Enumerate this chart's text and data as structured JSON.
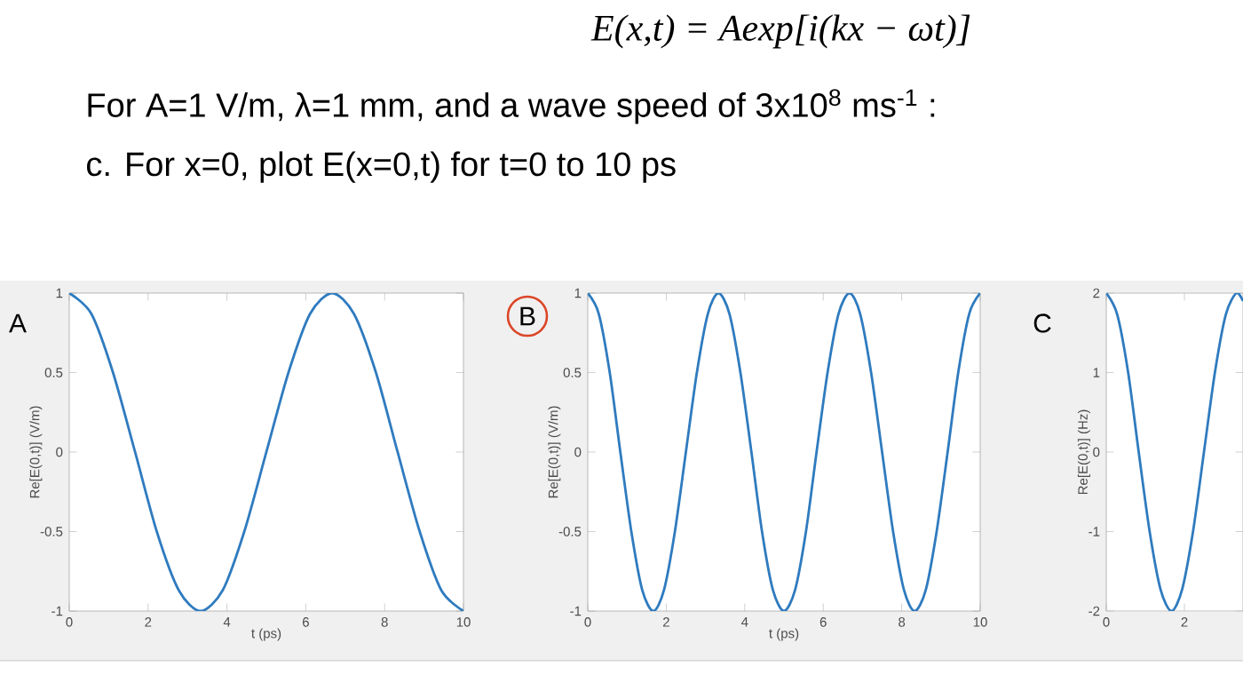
{
  "chart_data": [
    {
      "type": "line",
      "title": "A",
      "annotations": [
        "E(x,t) = Aexp[i(kx − ωt)]",
        "For A=1 V/m, λ=1 mm, and a wave speed of 3x10$^{8}$ ms$^{-1}$ :",
        "c. For x=0, plot E(x=0,t) for t=0 to 10 ps"
      ],
      "xlabel": "t (ps)",
      "ylabel": "Re[E(0,t)]  (V/m)",
      "xlim": [
        0,
        10
      ],
      "ylim": [
        -1,
        1
      ],
      "xticks": [
        0,
        2,
        4,
        6,
        8,
        10
      ],
      "yticks": [
        -1,
        -0.5,
        0,
        0.5,
        1
      ],
      "x": [
        0,
        0.56,
        1.11,
        1.67,
        2.22,
        2.78,
        3.33,
        3.89,
        4.44,
        5,
        5.56,
        6.11,
        6.67,
        7.22,
        7.78,
        8.33,
        8.89,
        9.44,
        10
      ],
      "series": [
        {
          "color": "#2f7bbf",
          "values": [
            1,
            0.87,
            0.5,
            0,
            -0.5,
            -0.87,
            -1,
            -0.87,
            -0.5,
            0,
            0.5,
            0.87,
            1,
            0.87,
            0.5,
            0,
            -0.5,
            -0.87,
            -1
          ]
        }
      ]
    },
    {
      "type": "line",
      "title": "B",
      "xlabel": "t (ps)",
      "ylabel": "Re[E(0,t)] (V/m)",
      "xlim": [
        0,
        10
      ],
      "ylim": [
        -1,
        1
      ],
      "xticks": [
        0,
        2,
        4,
        6,
        8,
        10
      ],
      "yticks": [
        -1,
        -0.5,
        0,
        0.5,
        1
      ],
      "x": [
        0,
        0.28,
        0.56,
        0.83,
        1.11,
        1.39,
        1.67,
        1.94,
        2.22,
        2.5,
        2.78,
        3.06,
        3.33,
        3.61,
        3.89,
        4.17,
        4.44,
        4.72,
        5,
        5.28,
        5.56,
        5.83,
        6.11,
        6.39,
        6.67,
        6.94,
        7.22,
        7.5,
        7.78,
        8.06,
        8.33,
        8.61,
        8.89,
        9.17,
        9.44,
        9.72,
        10
      ],
      "series": [
        {
          "color": "#2f7bbf",
          "values": [
            1,
            0.87,
            0.5,
            0,
            -0.5,
            -0.87,
            -1,
            -0.87,
            -0.5,
            0,
            0.5,
            0.87,
            1,
            0.87,
            0.5,
            0,
            -0.5,
            -0.87,
            -1,
            -0.87,
            -0.5,
            0,
            0.5,
            0.87,
            1,
            0.87,
            0.5,
            0,
            -0.5,
            -0.87,
            -1,
            -0.87,
            -0.5,
            0,
            0.5,
            0.87,
            1
          ]
        }
      ]
    },
    {
      "type": "line",
      "title": "C",
      "ylabel": "Re[E(0,t)] (Hz)",
      "xlim": [
        0,
        3.5
      ],
      "ylim": [
        -2,
        2
      ],
      "xticks": [
        0,
        2
      ],
      "yticks": [
        -2,
        -1,
        0,
        1,
        2
      ],
      "x": [
        0,
        0.28,
        0.56,
        0.83,
        1.11,
        1.39,
        1.67,
        1.94,
        2.22,
        2.5,
        2.78,
        3.06,
        3.33,
        3.5
      ],
      "series": [
        {
          "color": "#2f7bbf",
          "values": [
            2,
            1.73,
            1,
            0,
            -1,
            -1.73,
            -2,
            -1.73,
            -1,
            0,
            1,
            1.73,
            2,
            1.9
          ]
        }
      ]
    }
  ]
}
